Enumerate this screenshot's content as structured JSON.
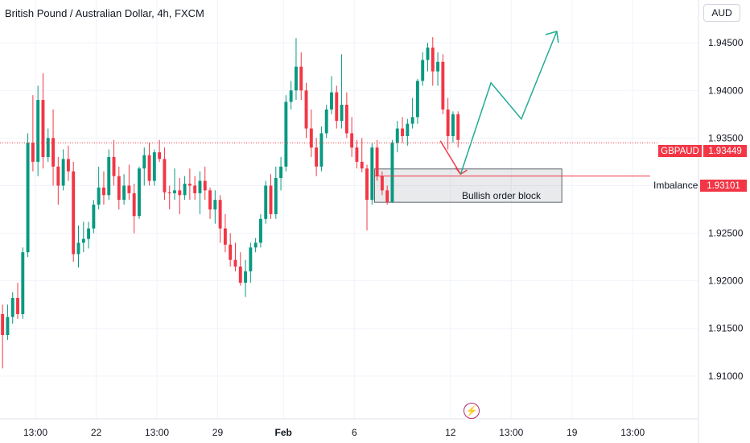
{
  "title": "British Pound / Australian Dollar, 4h, FXCM",
  "currency": "AUD",
  "colors": {
    "up": "#089981",
    "down": "#f23645",
    "grid": "#f0f3fa",
    "projection": "#22ab94",
    "axis_text": "#131722"
  },
  "annotations": {
    "order_block_label": "Bullish order block",
    "imbalance_label": "Imbalance",
    "symbol_tag": "GBPAUD",
    "last_price_tag": "1.93449",
    "imbalance_price_tag": "1.93101"
  },
  "chart_data": {
    "type": "candlestick",
    "title": "British Pound / Australian Dollar, 4h, FXCM",
    "y_ticks": [
      "1.94500",
      "1.94000",
      "1.93500",
      "1.93000",
      "1.92500",
      "1.92000",
      "1.91500",
      "1.91000"
    ],
    "y_tick_values": [
      1.945,
      1.94,
      1.935,
      1.93,
      1.925,
      1.92,
      1.915,
      1.91
    ],
    "ylim": [
      1.9055,
      1.9495
    ],
    "x_ticks": [
      "13:00",
      "22",
      "13:00",
      "29",
      "Feb",
      "6",
      "12",
      "13:00",
      "19",
      "13:00"
    ],
    "x_tick_index": [
      7,
      19,
      31,
      43,
      56,
      70,
      89,
      101,
      113,
      125
    ],
    "x_domain": [
      0,
      138
    ],
    "last_price": 1.93449,
    "imbalance_level": 1.93101,
    "order_block": {
      "from_index": 74,
      "to_index": 111,
      "top": 1.93175,
      "bottom": 1.92825
    },
    "candles": [
      [
        1.9165,
        1.9175,
        1.9108,
        1.9143
      ],
      [
        1.9143,
        1.9175,
        1.9138,
        1.9162
      ],
      [
        1.9162,
        1.9188,
        1.9155,
        1.9182
      ],
      [
        1.9182,
        1.9198,
        1.916,
        1.9165
      ],
      [
        1.9165,
        1.9235,
        1.916,
        1.923
      ],
      [
        1.923,
        1.9355,
        1.9225,
        1.9345
      ],
      [
        1.9345,
        1.9395,
        1.9315,
        1.9325
      ],
      [
        1.9325,
        1.9405,
        1.931,
        1.939
      ],
      [
        1.939,
        1.9418,
        1.9318,
        1.933
      ],
      [
        1.933,
        1.936,
        1.9325,
        1.935
      ],
      [
        1.935,
        1.938,
        1.93,
        1.932
      ],
      [
        1.932,
        1.933,
        1.928,
        1.93
      ],
      [
        1.93,
        1.9338,
        1.9295,
        1.9328
      ],
      [
        1.9328,
        1.9342,
        1.9305,
        1.9315
      ],
      [
        1.9315,
        1.9325,
        1.922,
        1.9228
      ],
      [
        1.9228,
        1.9258,
        1.9214,
        1.924
      ],
      [
        1.924,
        1.9262,
        1.923,
        1.9244
      ],
      [
        1.9244,
        1.9262,
        1.9234,
        1.9255
      ],
      [
        1.9255,
        1.9285,
        1.925,
        1.928
      ],
      [
        1.928,
        1.932,
        1.9275,
        1.9298
      ],
      [
        1.9298,
        1.9315,
        1.928,
        1.929
      ],
      [
        1.929,
        1.9338,
        1.9285,
        1.933
      ],
      [
        1.933,
        1.9348,
        1.93,
        1.931
      ],
      [
        1.931,
        1.932,
        1.9275,
        1.9285
      ],
      [
        1.9285,
        1.9312,
        1.928,
        1.93
      ],
      [
        1.93,
        1.9322,
        1.9285,
        1.9292
      ],
      [
        1.9292,
        1.9302,
        1.925,
        1.9268
      ],
      [
        1.9268,
        1.932,
        1.9265,
        1.9318
      ],
      [
        1.9318,
        1.934,
        1.93,
        1.9332
      ],
      [
        1.9332,
        1.9345,
        1.93,
        1.9305
      ],
      [
        1.9305,
        1.9338,
        1.93,
        1.9335
      ],
      [
        1.9335,
        1.9348,
        1.9325,
        1.9328
      ],
      [
        1.9328,
        1.934,
        1.9285,
        1.9293
      ],
      [
        1.9293,
        1.93,
        1.9275,
        1.9292
      ],
      [
        1.9292,
        1.9318,
        1.9285,
        1.9295
      ],
      [
        1.9295,
        1.9308,
        1.927,
        1.929
      ],
      [
        1.929,
        1.931,
        1.9285,
        1.9302
      ],
      [
        1.9302,
        1.9318,
        1.9285,
        1.93
      ],
      [
        1.93,
        1.931,
        1.9285,
        1.9292
      ],
      [
        1.9292,
        1.9315,
        1.927,
        1.9305
      ],
      [
        1.9305,
        1.932,
        1.9285,
        1.9295
      ],
      [
        1.9295,
        1.9298,
        1.9265,
        1.9275
      ],
      [
        1.9275,
        1.9295,
        1.926,
        1.9285
      ],
      [
        1.9285,
        1.929,
        1.924,
        1.9255
      ],
      [
        1.9255,
        1.927,
        1.923,
        1.9238
      ],
      [
        1.9238,
        1.925,
        1.9215,
        1.9222
      ],
      [
        1.9222,
        1.924,
        1.921,
        1.9215
      ],
      [
        1.9215,
        1.923,
        1.9195,
        1.9198
      ],
      [
        1.9198,
        1.9222,
        1.9183,
        1.921
      ],
      [
        1.921,
        1.924,
        1.9198,
        1.9235
      ],
      [
        1.9235,
        1.9245,
        1.923,
        1.924
      ],
      [
        1.924,
        1.927,
        1.9235,
        1.9265
      ],
      [
        1.9265,
        1.9305,
        1.926,
        1.93
      ],
      [
        1.93,
        1.9312,
        1.9265,
        1.927
      ],
      [
        1.927,
        1.932,
        1.9265,
        1.9308
      ],
      [
        1.9308,
        1.933,
        1.9295,
        1.932
      ],
      [
        1.932,
        1.9395,
        1.9315,
        1.9388
      ],
      [
        1.9388,
        1.941,
        1.938,
        1.94
      ],
      [
        1.94,
        1.9455,
        1.939,
        1.9425
      ],
      [
        1.9425,
        1.944,
        1.939,
        1.94
      ],
      [
        1.94,
        1.9408,
        1.935,
        1.936
      ],
      [
        1.936,
        1.938,
        1.933,
        1.934
      ],
      [
        1.934,
        1.935,
        1.931,
        1.932
      ],
      [
        1.932,
        1.9362,
        1.9315,
        1.9355
      ],
      [
        1.9355,
        1.9385,
        1.935,
        1.938
      ],
      [
        1.938,
        1.9415,
        1.9375,
        1.9398
      ],
      [
        1.9398,
        1.9405,
        1.936,
        1.9368
      ],
      [
        1.9368,
        1.9438,
        1.936,
        1.9385
      ],
      [
        1.9385,
        1.9398,
        1.935,
        1.9355
      ],
      [
        1.9355,
        1.9372,
        1.933,
        1.934
      ],
      [
        1.934,
        1.9348,
        1.9318,
        1.9325
      ],
      [
        1.9325,
        1.935,
        1.9314,
        1.9318
      ],
      [
        1.9318,
        1.9322,
        1.9253,
        1.9285
      ],
      [
        1.9285,
        1.9345,
        1.928,
        1.934
      ],
      [
        1.934,
        1.9348,
        1.9305,
        1.931
      ],
      [
        1.931,
        1.9315,
        1.929,
        1.9295
      ],
      [
        1.9295,
        1.93,
        1.928,
        1.9283
      ],
      [
        1.9283,
        1.9348,
        1.9282,
        1.9345
      ],
      [
        1.9345,
        1.9368,
        1.9335,
        1.936
      ],
      [
        1.936,
        1.9372,
        1.9345,
        1.9352
      ],
      [
        1.9352,
        1.937,
        1.9342,
        1.9365
      ],
      [
        1.9365,
        1.9392,
        1.936,
        1.9372
      ],
      [
        1.9372,
        1.9412,
        1.9365,
        1.941
      ],
      [
        1.941,
        1.944,
        1.9405,
        1.9432
      ],
      [
        1.9432,
        1.945,
        1.942,
        1.9445
      ],
      [
        1.9445,
        1.9456,
        1.9405,
        1.942
      ],
      [
        1.942,
        1.944,
        1.9405,
        1.943
      ],
      [
        1.943,
        1.9438,
        1.9375,
        1.938
      ],
      [
        1.938,
        1.9392,
        1.9338,
        1.9352
      ],
      [
        1.9352,
        1.9378,
        1.9345,
        1.9375
      ],
      [
        1.9375,
        1.9378,
        1.934,
        1.9348
      ]
    ],
    "projection": {
      "red": [
        [
          87,
          1.9347
        ],
        [
          91,
          1.9312
        ]
      ],
      "green": [
        [
          91,
          1.9312
        ],
        [
          97,
          1.9408
        ],
        [
          103,
          1.937
        ],
        [
          110,
          1.9462
        ]
      ]
    }
  }
}
